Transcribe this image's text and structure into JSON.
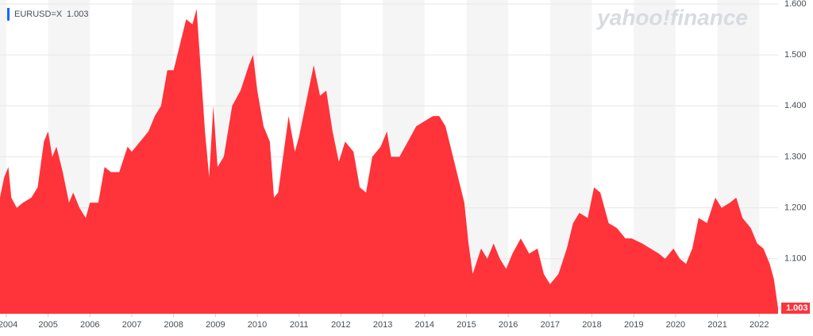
{
  "chart_data": {
    "type": "area",
    "watermark": "yahoo!finance",
    "series": [
      {
        "name": "EURUSD=X",
        "color": "#ff333a",
        "x": [
          2003.85,
          2003.95,
          2004.05,
          2004.12,
          2004.25,
          2004.4,
          2004.6,
          2004.75,
          2004.9,
          2005.0,
          2005.1,
          2005.2,
          2005.35,
          2005.5,
          2005.6,
          2005.75,
          2005.9,
          2006.0,
          2006.2,
          2006.35,
          2006.5,
          2006.7,
          2006.9,
          2007.0,
          2007.2,
          2007.4,
          2007.55,
          2007.7,
          2007.85,
          2008.0,
          2008.15,
          2008.3,
          2008.45,
          2008.55,
          2008.65,
          2008.75,
          2008.85,
          2008.95,
          2009.05,
          2009.2,
          2009.4,
          2009.6,
          2009.8,
          2009.9,
          2010.0,
          2010.15,
          2010.3,
          2010.4,
          2010.5,
          2010.6,
          2010.75,
          2010.9,
          2011.0,
          2011.15,
          2011.35,
          2011.5,
          2011.65,
          2011.8,
          2011.95,
          2012.1,
          2012.3,
          2012.45,
          2012.6,
          2012.75,
          2012.95,
          2013.1,
          2013.2,
          2013.4,
          2013.6,
          2013.8,
          2014.0,
          2014.2,
          2014.35,
          2014.5,
          2014.65,
          2014.8,
          2014.95,
          2015.05,
          2015.15,
          2015.35,
          2015.5,
          2015.65,
          2015.8,
          2015.95,
          2016.1,
          2016.3,
          2016.5,
          2016.7,
          2016.85,
          2017.0,
          2017.2,
          2017.4,
          2017.55,
          2017.7,
          2017.9,
          2018.05,
          2018.2,
          2018.4,
          2018.6,
          2018.8,
          2018.95,
          2019.2,
          2019.4,
          2019.6,
          2019.75,
          2019.95,
          2020.1,
          2020.25,
          2020.4,
          2020.55,
          2020.75,
          2020.95,
          2021.1,
          2021.3,
          2021.45,
          2021.6,
          2021.8,
          2021.95,
          2022.1,
          2022.25,
          2022.35,
          2022.45
        ],
        "values": [
          1.22,
          1.26,
          1.28,
          1.22,
          1.2,
          1.21,
          1.22,
          1.24,
          1.33,
          1.35,
          1.3,
          1.32,
          1.27,
          1.21,
          1.23,
          1.2,
          1.18,
          1.21,
          1.21,
          1.28,
          1.27,
          1.27,
          1.32,
          1.31,
          1.33,
          1.35,
          1.38,
          1.4,
          1.47,
          1.47,
          1.52,
          1.57,
          1.56,
          1.59,
          1.47,
          1.35,
          1.26,
          1.4,
          1.28,
          1.3,
          1.4,
          1.43,
          1.48,
          1.5,
          1.43,
          1.36,
          1.33,
          1.22,
          1.23,
          1.29,
          1.38,
          1.31,
          1.34,
          1.4,
          1.48,
          1.42,
          1.43,
          1.35,
          1.29,
          1.33,
          1.31,
          1.24,
          1.23,
          1.3,
          1.32,
          1.35,
          1.3,
          1.3,
          1.33,
          1.36,
          1.37,
          1.38,
          1.38,
          1.36,
          1.31,
          1.26,
          1.21,
          1.13,
          1.07,
          1.12,
          1.1,
          1.13,
          1.1,
          1.08,
          1.11,
          1.14,
          1.11,
          1.12,
          1.07,
          1.05,
          1.07,
          1.12,
          1.17,
          1.19,
          1.18,
          1.24,
          1.23,
          1.17,
          1.16,
          1.14,
          1.14,
          1.13,
          1.12,
          1.11,
          1.1,
          1.12,
          1.1,
          1.09,
          1.12,
          1.18,
          1.17,
          1.22,
          1.2,
          1.21,
          1.22,
          1.18,
          1.16,
          1.13,
          1.12,
          1.09,
          1.06,
          1.003
        ]
      }
    ],
    "xlim": [
      2003.85,
      2022.45
    ],
    "xticks": [
      2004,
      2005,
      2006,
      2007,
      2008,
      2009,
      2010,
      2011,
      2012,
      2013,
      2014,
      2015,
      2016,
      2017,
      2018,
      2019,
      2020,
      2021,
      2022
    ],
    "ylim": [
      0.992,
      1.6
    ],
    "yticks": [
      {
        "value": 1.1,
        "label": "1.100"
      },
      {
        "value": 1.2,
        "label": "1.200"
      },
      {
        "value": 1.3,
        "label": "1.300"
      },
      {
        "value": 1.4,
        "label": "1.400"
      },
      {
        "value": 1.5,
        "label": "1.500"
      },
      {
        "value": 1.6,
        "label": "1.600"
      }
    ]
  }
}
